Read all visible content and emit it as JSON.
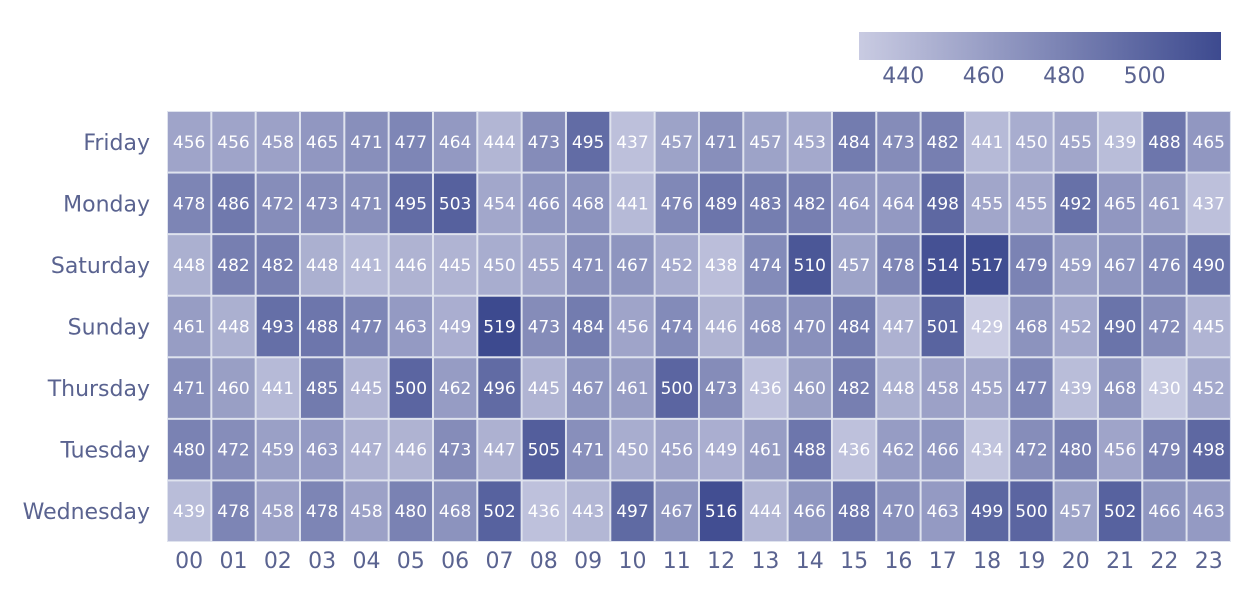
{
  "chart_data": {
    "type": "heatmap",
    "title": "",
    "xlabel": "",
    "ylabel": "",
    "x_categories": [
      "00",
      "01",
      "02",
      "03",
      "04",
      "05",
      "06",
      "07",
      "08",
      "09",
      "10",
      "11",
      "12",
      "13",
      "14",
      "15",
      "16",
      "17",
      "18",
      "19",
      "20",
      "21",
      "22",
      "23"
    ],
    "y_categories": [
      "Friday",
      "Monday",
      "Saturday",
      "Sunday",
      "Thursday",
      "Tuesday",
      "Wednesday"
    ],
    "values": [
      [
        456,
        456,
        458,
        465,
        471,
        477,
        464,
        444,
        473,
        495,
        437,
        457,
        471,
        457,
        453,
        484,
        473,
        482,
        441,
        450,
        455,
        439,
        488,
        465
      ],
      [
        478,
        486,
        472,
        473,
        471,
        495,
        503,
        454,
        466,
        468,
        441,
        476,
        489,
        483,
        482,
        464,
        464,
        498,
        455,
        455,
        492,
        465,
        461,
        437
      ],
      [
        448,
        482,
        482,
        448,
        441,
        446,
        445,
        450,
        455,
        471,
        467,
        452,
        438,
        474,
        510,
        457,
        478,
        514,
        517,
        479,
        459,
        467,
        476,
        490
      ],
      [
        461,
        448,
        493,
        488,
        477,
        463,
        449,
        519,
        473,
        484,
        456,
        474,
        446,
        468,
        470,
        484,
        447,
        501,
        429,
        468,
        452,
        490,
        472,
        445
      ],
      [
        471,
        460,
        441,
        485,
        445,
        500,
        462,
        496,
        445,
        467,
        461,
        500,
        473,
        436,
        460,
        482,
        448,
        458,
        455,
        477,
        439,
        468,
        430,
        452
      ],
      [
        480,
        472,
        459,
        463,
        447,
        446,
        473,
        447,
        505,
        471,
        450,
        456,
        449,
        461,
        488,
        436,
        462,
        466,
        434,
        472,
        480,
        456,
        479,
        498
      ],
      [
        439,
        478,
        458,
        478,
        458,
        480,
        468,
        502,
        436,
        443,
        497,
        467,
        516,
        444,
        466,
        488,
        470,
        463,
        499,
        500,
        457,
        502,
        466,
        463
      ]
    ],
    "color_scale": {
      "min": 429,
      "max": 519,
      "low_color": "#c9cbe2",
      "high_color": "#3d4a8f",
      "ticks": [
        440,
        460,
        480,
        500
      ]
    },
    "grid_color": "#dfe3ee",
    "label_color": "#5a6390",
    "legend_placement": "top-right"
  }
}
